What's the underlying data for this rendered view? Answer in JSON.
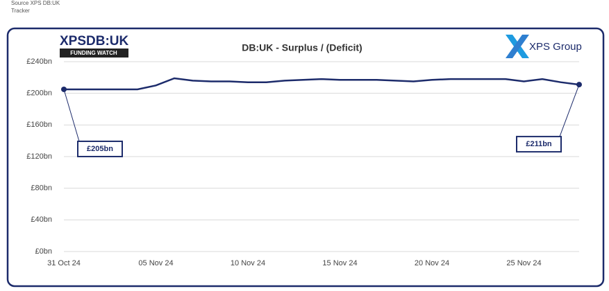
{
  "source": [
    "Source XPS DB:UK",
    "Tracker"
  ],
  "logo": {
    "brand": "XPSDB:UK",
    "tagline": "FUNDING WATCH"
  },
  "company": "XPS Group",
  "chart_data": {
    "type": "line",
    "title": "DB:UK - Surplus / (Deficit)",
    "x": [
      "2024-10-31",
      "2024-11-01",
      "2024-11-02",
      "2024-11-03",
      "2024-11-04",
      "2024-11-05",
      "2024-11-06",
      "2024-11-07",
      "2024-11-08",
      "2024-11-09",
      "2024-11-10",
      "2024-11-11",
      "2024-11-12",
      "2024-11-13",
      "2024-11-14",
      "2024-11-15",
      "2024-11-16",
      "2024-11-17",
      "2024-11-18",
      "2024-11-19",
      "2024-11-20",
      "2024-11-21",
      "2024-11-22",
      "2024-11-23",
      "2024-11-24",
      "2024-11-25",
      "2024-11-26",
      "2024-11-27",
      "2024-11-28"
    ],
    "series": [
      {
        "name": "Surplus / (Deficit)",
        "color": "#1c2b6b",
        "values": [
          205,
          205,
          205,
          205,
          205,
          210,
          219,
          216,
          215,
          215,
          214,
          214,
          216,
          217,
          218,
          217,
          217,
          217,
          216,
          215,
          217,
          218,
          218,
          218,
          218,
          215,
          218,
          214,
          211
        ],
        "value_labels": [
          "£205bn",
          null,
          null,
          null,
          null,
          null,
          null,
          null,
          null,
          null,
          null,
          null,
          null,
          null,
          null,
          null,
          null,
          null,
          null,
          null,
          null,
          null,
          null,
          null,
          null,
          null,
          null,
          null,
          "£211bn"
        ]
      }
    ],
    "xlim": [
      "2024-10-31",
      "2024-11-28"
    ],
    "xticks": [
      {
        "value": "2024-10-31",
        "label": "31 Oct 24"
      },
      {
        "value": "2024-11-05",
        "label": "05 Nov 24"
      },
      {
        "value": "2024-11-10",
        "label": "10 Nov 24"
      },
      {
        "value": "2024-11-15",
        "label": "15 Nov 24"
      },
      {
        "value": "2024-11-20",
        "label": "20 Nov 24"
      },
      {
        "value": "2024-11-25",
        "label": "25 Nov 24"
      }
    ],
    "ylim": [
      0,
      240
    ],
    "yticks": [
      {
        "value": 0,
        "label": "£0bn"
      },
      {
        "value": 40,
        "label": "£40bn"
      },
      {
        "value": 80,
        "label": "£80bn"
      },
      {
        "value": 120,
        "label": "£120bn"
      },
      {
        "value": 160,
        "label": "£160bn"
      },
      {
        "value": 200,
        "label": "£200bn"
      },
      {
        "value": 240,
        "label": "£240bn"
      }
    ],
    "grid": true
  }
}
